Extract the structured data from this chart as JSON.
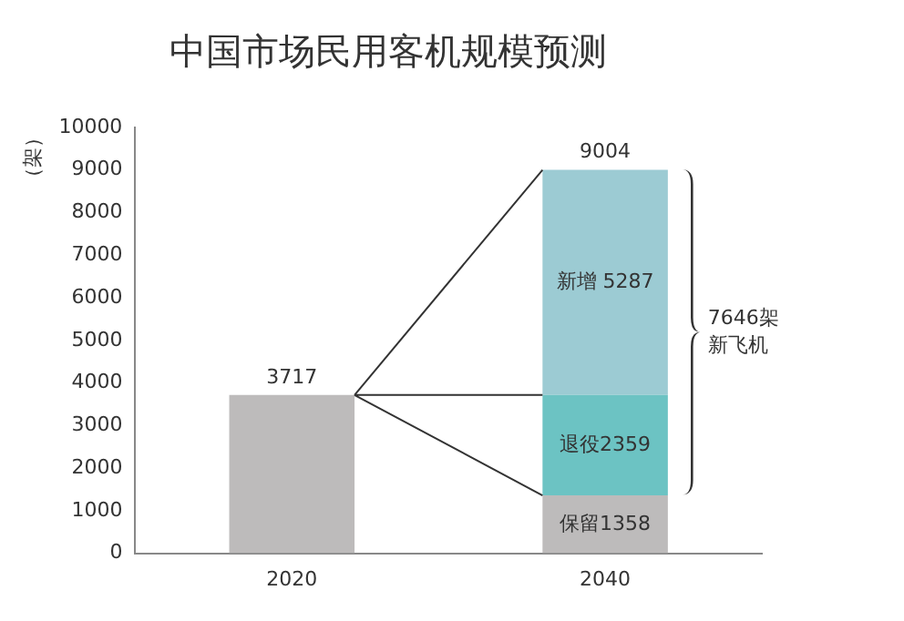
{
  "chart_data": {
    "type": "bar",
    "title": "中国市场民用客机规模预测",
    "ylabel": "（架）",
    "categories": [
      "2020",
      "2040"
    ],
    "stacked": true,
    "series": [
      {
        "color": "#bdbbbb",
        "values": [
          3717,
          1358
        ],
        "value_labels": [
          null,
          "保留1358"
        ]
      },
      {
        "color": "#6cc3c3",
        "values": [
          null,
          2359
        ],
        "value_labels": [
          null,
          "退役2359"
        ]
      },
      {
        "color": "#9ccbd3",
        "values": [
          null,
          5287
        ],
        "value_labels": [
          null,
          "新增 5287"
        ]
      }
    ],
    "totals": [
      "3717",
      "9004"
    ],
    "ylim": [
      0,
      10000
    ],
    "yticks": [
      0,
      1000,
      2000,
      3000,
      4000,
      5000,
      6000,
      7000,
      8000,
      9000,
      10000
    ],
    "grid": false,
    "legend": false,
    "annotations": [
      "7646架新飞机"
    ]
  }
}
